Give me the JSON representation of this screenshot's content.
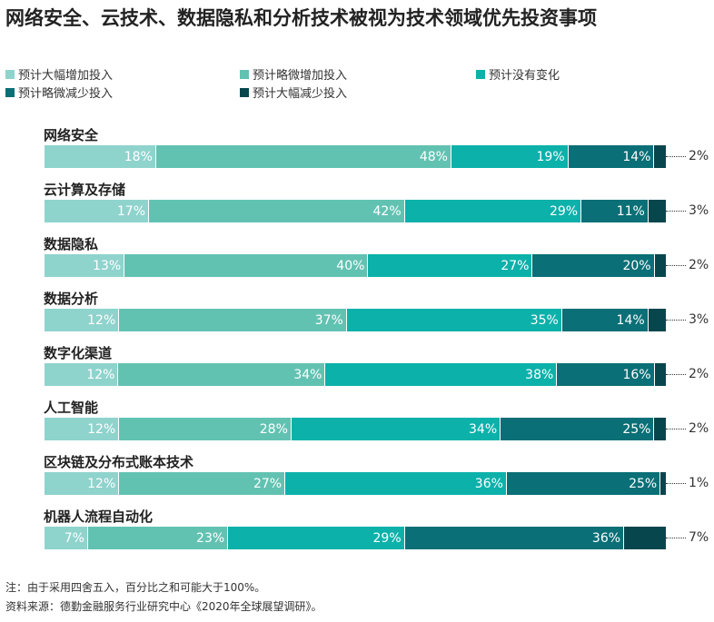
{
  "title": "网络安全、云技术、数据隐私和分析技术被视为技术领域优先投资事项",
  "legend": [
    {
      "label": "预计大幅增加投入",
      "color": "#8fd3cd"
    },
    {
      "label": "预计略微增加投入",
      "color": "#62c2b2"
    },
    {
      "label": "预计没有变化",
      "color": "#0cb1aa"
    },
    {
      "label": "预计略微减少投入",
      "color": "#0a6f76"
    },
    {
      "label": "预计大幅减少投入",
      "color": "#07464c"
    }
  ],
  "chart_data": {
    "type": "bar",
    "orientation": "horizontal-stacked-100",
    "categories": [
      "网络安全",
      "云计算及存储",
      "数据隐私",
      "数据分析",
      "数字化渠道",
      "人工智能",
      "区块链及分布式账本技术",
      "机器人流程自动化"
    ],
    "series": [
      {
        "name": "预计大幅增加投入",
        "values": [
          18,
          17,
          13,
          12,
          12,
          12,
          12,
          7
        ]
      },
      {
        "name": "预计略微增加投入",
        "values": [
          48,
          42,
          40,
          37,
          34,
          28,
          27,
          23
        ]
      },
      {
        "name": "预计没有变化",
        "values": [
          19,
          29,
          27,
          35,
          38,
          34,
          36,
          29
        ]
      },
      {
        "name": "预计略微减少投入",
        "values": [
          14,
          11,
          20,
          14,
          16,
          25,
          25,
          36
        ]
      },
      {
        "name": "预计大幅减少投入",
        "values": [
          2,
          3,
          2,
          3,
          2,
          2,
          1,
          7
        ]
      }
    ],
    "value_suffix": "%"
  },
  "notes": {
    "note": "注：由于采用四舍五入，百分比之和可能大于100%。",
    "source": "资料来源：德勤金融服务行业研究中心《2020年全球展望调研》。"
  }
}
